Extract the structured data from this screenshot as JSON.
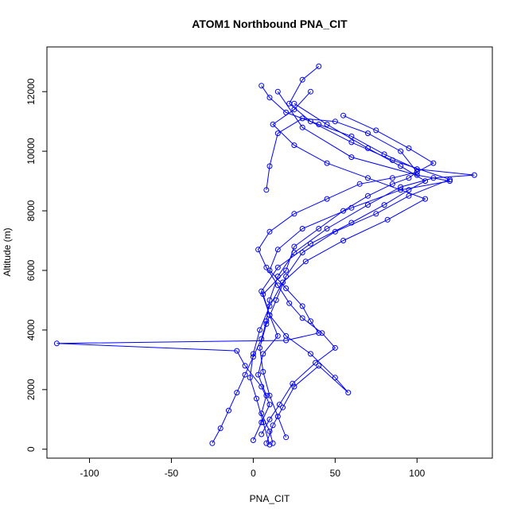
{
  "chart_data": {
    "type": "scatter",
    "title": "ATOM1 Northbound PNA_CIT",
    "xlabel": "PNA_CIT",
    "ylabel": "Altitude (m)",
    "xlim": [
      -126,
      146
    ],
    "ylim": [
      -300,
      13500
    ],
    "x_ticks": [
      -100,
      -50,
      0,
      50,
      100
    ],
    "y_ticks": [
      0,
      2000,
      4000,
      6000,
      8000,
      10000,
      12000
    ],
    "grid": false,
    "legend": "none",
    "color": "#0000ff",
    "series": [
      {
        "x": [
          12,
          10,
          5,
          8,
          3,
          6,
          15,
          10,
          6,
          20,
          25,
          40,
          55,
          70,
          85,
          95,
          100,
          90,
          70,
          50,
          30,
          15,
          10,
          8
        ],
        "y": [
          200,
          600,
          1200,
          1800,
          2500,
          3200,
          3800,
          4500,
          5200,
          6000,
          6800,
          7400,
          8000,
          8500,
          8900,
          9100,
          9300,
          10000,
          10600,
          11000,
          11100,
          10600,
          9500,
          8700
        ]
      },
      {
        "x": [
          -25,
          -20,
          -15,
          -10,
          -5,
          0,
          5,
          8,
          10,
          15,
          25,
          45,
          70,
          90,
          110,
          135,
          100,
          80,
          60,
          40,
          20,
          10,
          5
        ],
        "y": [
          200,
          700,
          1300,
          1900,
          2500,
          3100,
          3700,
          4300,
          5000,
          5800,
          6600,
          7400,
          8200,
          8800,
          9100,
          9200,
          9400,
          9900,
          10500,
          10900,
          11300,
          11800,
          12200
        ]
      },
      {
        "x": [
          0,
          5,
          10,
          5,
          -5,
          -10,
          -120,
          20,
          40,
          35,
          30,
          20,
          10,
          15,
          30,
          60,
          90,
          120,
          100,
          60,
          30,
          15
        ],
        "y": [
          300,
          900,
          1500,
          2100,
          2800,
          3300,
          3550,
          3650,
          3900,
          4300,
          4800,
          5400,
          6000,
          6700,
          7400,
          8100,
          8700,
          9000,
          9200,
          9800,
          10800,
          12000
        ]
      },
      {
        "x": [
          8,
          12,
          18,
          25,
          40,
          58,
          50,
          35,
          20,
          10,
          5,
          15,
          35,
          60,
          80,
          95,
          105,
          90,
          70,
          45,
          25
        ],
        "y": [
          200,
          800,
          1400,
          2100,
          2800,
          1900,
          2400,
          3200,
          3800,
          4500,
          5300,
          6100,
          6900,
          7600,
          8200,
          8700,
          9000,
          9500,
          10100,
          10900,
          11600
        ]
      },
      {
        "x": [
          20,
          15,
          10,
          6,
          4,
          8,
          14,
          20,
          30,
          50,
          75,
          95,
          120,
          85,
          60,
          35,
          22,
          30,
          40
        ],
        "y": [
          400,
          1100,
          1800,
          2600,
          3400,
          4200,
          5000,
          5800,
          6600,
          7300,
          7900,
          8500,
          9050,
          9700,
          10300,
          11000,
          11600,
          12400,
          12850
        ]
      },
      {
        "x": [
          10,
          6,
          2,
          -2,
          0,
          4,
          10,
          18,
          32,
          55,
          82,
          105,
          70,
          45,
          25,
          12,
          25,
          35
        ],
        "y": [
          150,
          900,
          1700,
          2400,
          3200,
          4000,
          4800,
          5600,
          6300,
          7000,
          7700,
          8400,
          9100,
          9600,
          10200,
          10900,
          11400,
          12000
        ]
      },
      {
        "x": [
          5,
          10,
          16,
          24,
          38,
          50,
          42,
          30,
          22,
          15,
          8,
          3,
          10,
          25,
          45,
          65,
          85,
          100,
          110,
          95,
          75,
          55
        ],
        "y": [
          500,
          1000,
          1500,
          2200,
          2900,
          3400,
          3900,
          4400,
          4900,
          5500,
          6100,
          6700,
          7300,
          7900,
          8400,
          8900,
          9100,
          9300,
          9600,
          10100,
          10700,
          11200
        ]
      }
    ]
  }
}
